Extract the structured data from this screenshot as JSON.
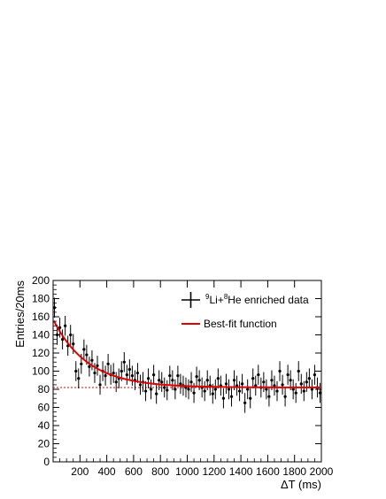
{
  "chart_data": {
    "type": "scatter",
    "xlabel": "ΔT (ms)",
    "ylabel": "Entries/20ms",
    "xlim": [
      0,
      2000
    ],
    "ylim": [
      0,
      200
    ],
    "x_ticks": [
      200,
      400,
      600,
      800,
      1000,
      1200,
      1400,
      1600,
      1800,
      2000
    ],
    "y_ticks": [
      0,
      20,
      40,
      60,
      80,
      100,
      120,
      140,
      160,
      180,
      200
    ],
    "colors": {
      "data": "#000000",
      "fit": "#e00000",
      "baseline": "#e00000"
    },
    "legend": {
      "placement": "top-right",
      "data_label_parts": [
        "9",
        "Li+",
        "8",
        "He enriched data"
      ],
      "fit_label": "Best-fit function"
    },
    "series": [
      {
        "kind": "data",
        "x": [
          10,
          30,
          50,
          70,
          90,
          110,
          130,
          150,
          170,
          190,
          210,
          230,
          250,
          270,
          290,
          310,
          330,
          350,
          370,
          390,
          410,
          430,
          450,
          470,
          490,
          510,
          530,
          550,
          570,
          590,
          610,
          630,
          650,
          670,
          690,
          710,
          730,
          750,
          770,
          790,
          810,
          830,
          850,
          870,
          890,
          910,
          930,
          950,
          970,
          990,
          1010,
          1030,
          1050,
          1070,
          1090,
          1110,
          1130,
          1150,
          1170,
          1190,
          1210,
          1230,
          1250,
          1270,
          1290,
          1310,
          1330,
          1350,
          1370,
          1390,
          1410,
          1430,
          1450,
          1470,
          1490,
          1510,
          1530,
          1550,
          1570,
          1590,
          1610,
          1630,
          1650,
          1670,
          1690,
          1710,
          1730,
          1750,
          1770,
          1790,
          1810,
          1830,
          1850,
          1870,
          1890,
          1910,
          1930,
          1950,
          1970,
          1990
        ],
        "y": [
          170,
          140,
          148,
          135,
          150,
          128,
          140,
          130,
          100,
          92,
          108,
          124,
          118,
          105,
          112,
          98,
          106,
          85,
          100,
          95,
          108,
          96,
          98,
          88,
          92,
          100,
          110,
          96,
          102,
          95,
          90,
          98,
          85,
          88,
          78,
          92,
          80,
          96,
          75,
          90,
          88,
          82,
          79,
          95,
          90,
          80,
          95,
          86,
          84,
          82,
          80,
          88,
          76,
          94,
          90,
          82,
          78,
          90,
          84,
          75,
          80,
          92,
          84,
          70,
          86,
          80,
          72,
          90,
          84,
          78,
          86,
          65,
          80,
          70,
          92,
          84,
          96,
          82,
          88,
          80,
          72,
          90,
          84,
          78,
          100,
          85,
          72,
          96,
          90,
          80,
          76,
          100,
          86,
          78,
          88,
          92,
          80,
          96,
          82,
          76
        ],
        "yerr": 11
      },
      {
        "kind": "fit",
        "baseline": 82,
        "amplitude": 75,
        "decay_ms": 257
      }
    ]
  }
}
